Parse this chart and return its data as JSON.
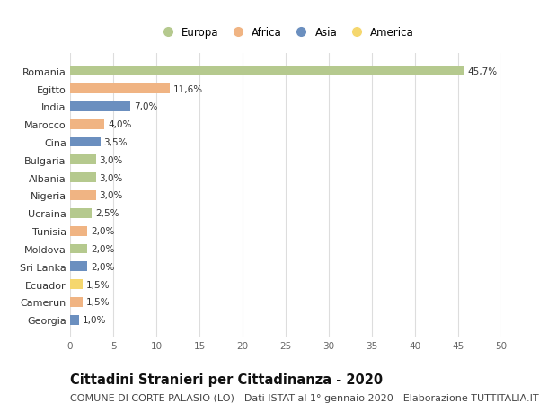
{
  "countries": [
    "Romania",
    "Egitto",
    "India",
    "Marocco",
    "Cina",
    "Bulgaria",
    "Albania",
    "Nigeria",
    "Ucraina",
    "Tunisia",
    "Moldova",
    "Sri Lanka",
    "Ecuador",
    "Camerun",
    "Georgia"
  ],
  "values": [
    45.7,
    11.6,
    7.0,
    4.0,
    3.5,
    3.0,
    3.0,
    3.0,
    2.5,
    2.0,
    2.0,
    2.0,
    1.5,
    1.5,
    1.0
  ],
  "labels": [
    "45,7%",
    "11,6%",
    "7,0%",
    "4,0%",
    "3,5%",
    "3,0%",
    "3,0%",
    "3,0%",
    "2,5%",
    "2,0%",
    "2,0%",
    "2,0%",
    "1,5%",
    "1,5%",
    "1,0%"
  ],
  "continents": [
    "Europa",
    "Africa",
    "Asia",
    "Africa",
    "Asia",
    "Europa",
    "Europa",
    "Africa",
    "Europa",
    "Africa",
    "Europa",
    "Asia",
    "America",
    "Africa",
    "Asia"
  ],
  "colors": {
    "Europa": "#b5c98e",
    "Africa": "#f0b483",
    "Asia": "#6b8fbf",
    "America": "#f5d76e"
  },
  "legend_order": [
    "Europa",
    "Africa",
    "Asia",
    "America"
  ],
  "xlim": [
    0,
    50
  ],
  "xticks": [
    0,
    5,
    10,
    15,
    20,
    25,
    30,
    35,
    40,
    45,
    50
  ],
  "title": "Cittadini Stranieri per Cittadinanza - 2020",
  "subtitle": "COMUNE DI CORTE PALASIO (LO) - Dati ISTAT al 1° gennaio 2020 - Elaborazione TUTTITALIA.IT",
  "title_fontsize": 10.5,
  "subtitle_fontsize": 8,
  "bg_color": "#ffffff",
  "grid_color": "#dddddd",
  "bar_height": 0.55
}
